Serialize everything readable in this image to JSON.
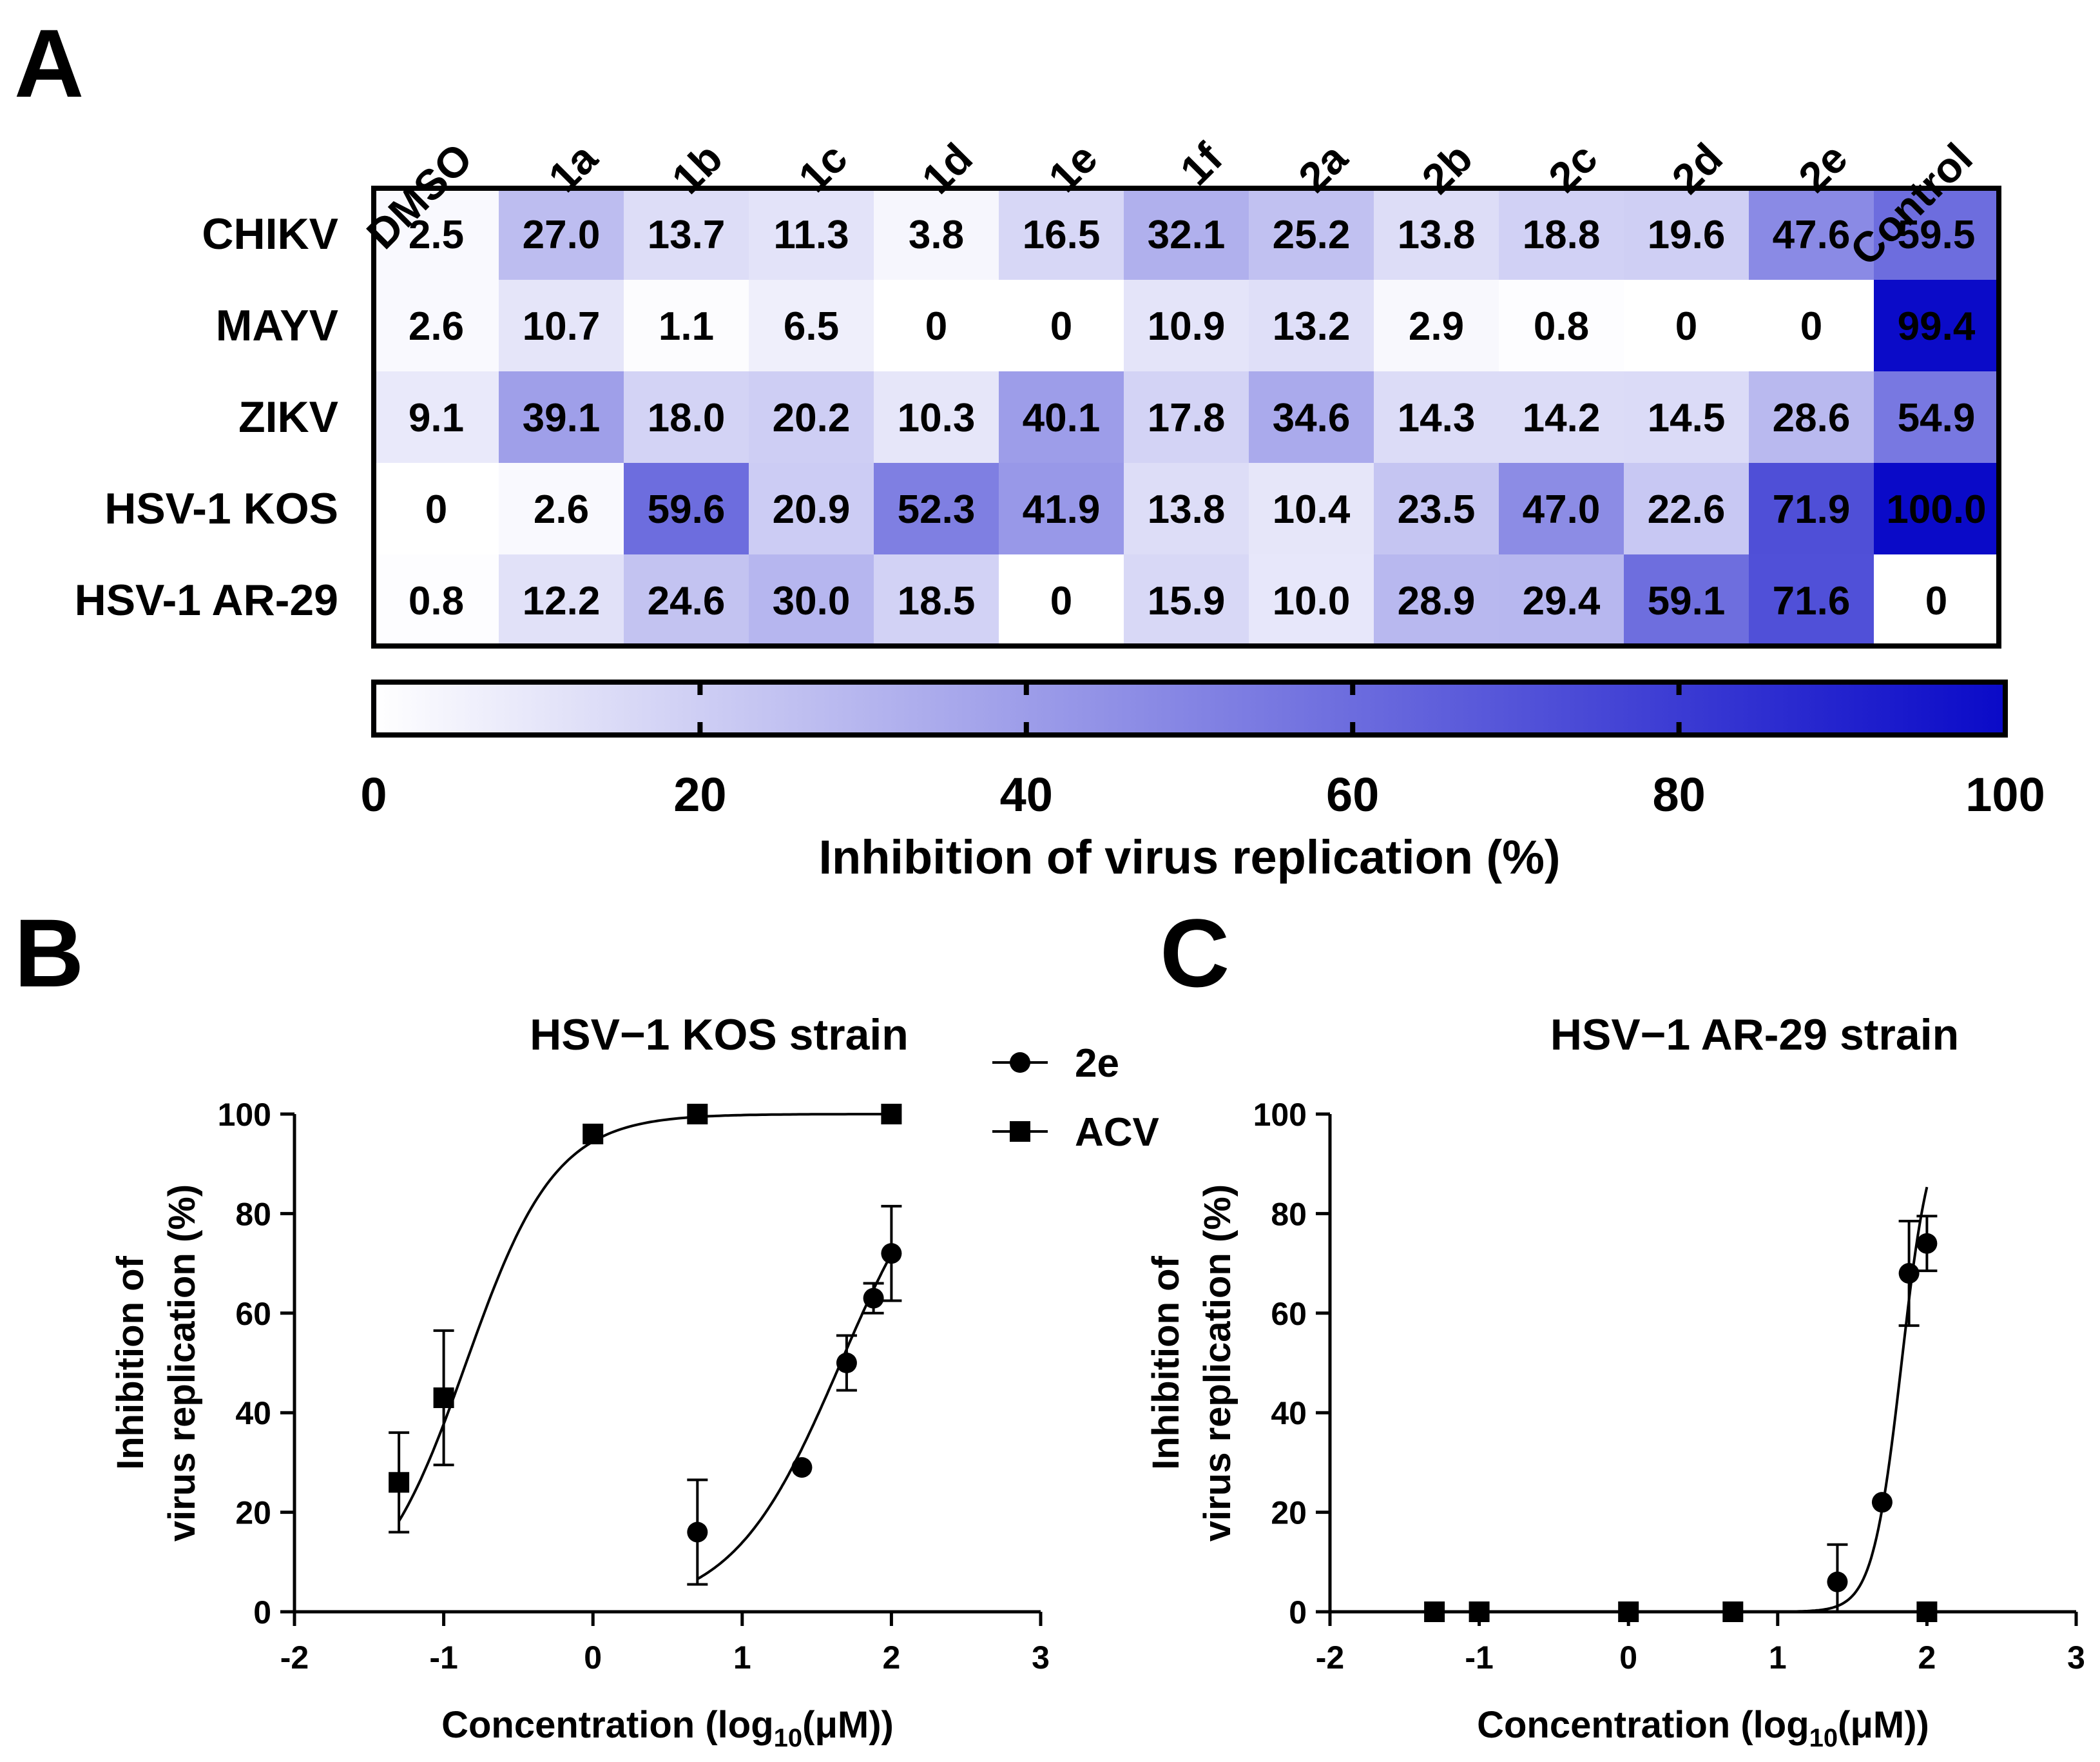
{
  "panels": {
    "a": "A",
    "b": "B",
    "c": "C"
  },
  "chart_data": [
    {
      "type": "heatmap",
      "panel": "A",
      "columns": [
        "DMSO",
        "1a",
        "1b",
        "1c",
        "1d",
        "1e",
        "1f",
        "2a",
        "2b",
        "2c",
        "2d",
        "2e",
        "Control"
      ],
      "rows": [
        "CHIKV",
        "MAYV",
        "ZIKV",
        "HSV-1 KOS",
        "HSV-1 AR-29"
      ],
      "values": [
        [
          "2.5",
          "27.0",
          "13.7",
          "11.3",
          "3.8",
          "16.5",
          "32.1",
          "25.2",
          "13.8",
          "18.8",
          "19.6",
          "47.6",
          "59.5"
        ],
        [
          "2.6",
          "10.7",
          "1.1",
          "6.5",
          "0",
          "0",
          "10.9",
          "13.2",
          "2.9",
          "0.8",
          "0",
          "0",
          "99.4"
        ],
        [
          "9.1",
          "39.1",
          "18.0",
          "20.2",
          "10.3",
          "40.1",
          "17.8",
          "34.6",
          "14.3",
          "14.2",
          "14.5",
          "28.6",
          "54.9"
        ],
        [
          "0",
          "2.6",
          "59.6",
          "20.9",
          "52.3",
          "41.9",
          "13.8",
          "10.4",
          "23.5",
          "47.0",
          "22.6",
          "71.9",
          "100.0"
        ],
        [
          "0.8",
          "12.2",
          "24.6",
          "30.0",
          "18.5",
          "0",
          "15.9",
          "10.0",
          "28.9",
          "29.4",
          "59.1",
          "71.6",
          "0"
        ]
      ],
      "colorbar": {
        "min": 0,
        "max": 100,
        "ticks": [
          "0",
          "20",
          "40",
          "60",
          "80",
          "100"
        ],
        "label": "Inhibition of virus replication (%)",
        "color_low": "#ffffff",
        "color_high": "#0a0ac8"
      }
    },
    {
      "type": "scatter",
      "panel": "B",
      "title": "HSV−1 KOS strain",
      "xlabel": "Concentration (log",
      "xlabel_sub": "10",
      "xlabel_end": "(μM))",
      "ylabel_line1": "Inhibition of",
      "ylabel_line2": "virus replication (%)",
      "xlim": [
        -2,
        3
      ],
      "ylim": [
        0,
        100
      ],
      "xticks": [
        "-2",
        "-1",
        "0",
        "1",
        "2",
        "3"
      ],
      "yticks": [
        "0",
        "20",
        "40",
        "60",
        "80",
        "100"
      ],
      "legend": {
        "entries": [
          "2e",
          "ACV"
        ]
      },
      "series": [
        {
          "name": "2e",
          "marker": "circle",
          "x": [
            0.7,
            1.4,
            1.7,
            1.88,
            2.0
          ],
          "y": [
            16,
            29,
            50,
            63,
            72
          ],
          "err": [
            10.5,
            0,
            5.5,
            3,
            9.5
          ],
          "fit": {
            "bottom": 0,
            "top": 100,
            "logec50": 1.66,
            "hill": 1.2,
            "xmin": 0.7,
            "xmax": 2.0
          }
        },
        {
          "name": "ACV",
          "marker": "square",
          "x": [
            -1.3,
            -1.0,
            0.0,
            0.7,
            2.0
          ],
          "y": [
            26,
            43,
            96,
            100,
            100
          ],
          "err": [
            10,
            13.5,
            0,
            0,
            0
          ],
          "fit": {
            "bottom": 0,
            "top": 100,
            "logec50": -0.85,
            "hill": 1.45,
            "xmin": -1.3,
            "xmax": 2.0
          }
        }
      ]
    },
    {
      "type": "scatter",
      "panel": "C",
      "title": "HSV−1 AR-29 strain",
      "xlabel": "Concentration (log",
      "xlabel_sub": "10",
      "xlabel_end": "(μM))",
      "ylabel_line1": "Inhibition of",
      "ylabel_line2": "virus replication (%)",
      "xlim": [
        -2,
        3
      ],
      "ylim": [
        0,
        100
      ],
      "xticks": [
        "-2",
        "-1",
        "0",
        "1",
        "2",
        "3"
      ],
      "yticks": [
        "0",
        "20",
        "40",
        "60",
        "80",
        "100"
      ],
      "series": [
        {
          "name": "2e",
          "marker": "circle",
          "x": [
            1.4,
            1.7,
            1.88,
            2.0
          ],
          "y": [
            6,
            22,
            68,
            74
          ],
          "err": [
            7.5,
            0,
            10.5,
            5.5
          ],
          "fit": {
            "bottom": 0,
            "top": 100,
            "logec50": 1.83,
            "hill": 4.5,
            "xmin": 0.0,
            "xmax": 2.0
          }
        },
        {
          "name": "ACV",
          "marker": "square",
          "x": [
            -1.3,
            -1.0,
            0.0,
            0.7,
            2.0
          ],
          "y": [
            0,
            0,
            0,
            0,
            0
          ],
          "err": [
            0,
            0,
            0,
            0,
            0
          ]
        }
      ]
    }
  ]
}
